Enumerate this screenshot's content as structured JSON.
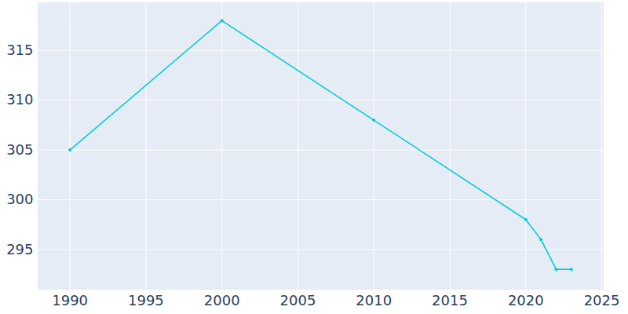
{
  "chart_data": {
    "type": "line",
    "x": [
      1990,
      2000,
      2010,
      2020,
      2021,
      2022,
      2023
    ],
    "values": [
      305,
      318,
      308,
      298,
      296,
      293,
      293
    ],
    "color": "#00CED1",
    "marker": "circle",
    "xlim": [
      1987.9,
      2025.1
    ],
    "xticks": [
      1990,
      1995,
      2000,
      2005,
      2010,
      2015,
      2020,
      2025
    ],
    "ylim": [
      291,
      319.8
    ],
    "yticks": [
      295,
      300,
      305,
      310,
      315
    ],
    "grid": true
  }
}
